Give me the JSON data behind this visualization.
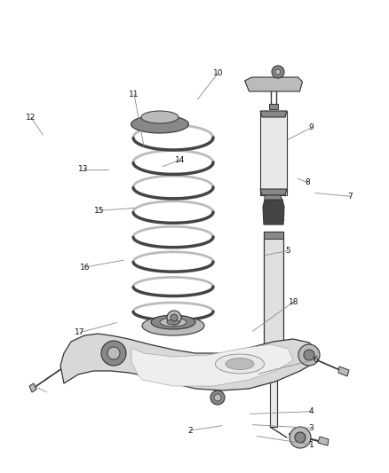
{
  "background_color": "#ffffff",
  "line_color": "#333333",
  "dark_color": "#444444",
  "mid_color": "#888888",
  "light_color": "#bbbbbb",
  "lighter_color": "#dddddd",
  "label_font_size": 6.5,
  "leader_color": "#888888",
  "leaders": [
    [
      1,
      0.8,
      0.94,
      0.66,
      0.922
    ],
    [
      2,
      0.49,
      0.91,
      0.57,
      0.9
    ],
    [
      3,
      0.8,
      0.905,
      0.65,
      0.898
    ],
    [
      4,
      0.8,
      0.87,
      0.643,
      0.875
    ],
    [
      5,
      0.74,
      0.53,
      0.68,
      0.54
    ],
    [
      6,
      0.81,
      0.76,
      0.665,
      0.79
    ],
    [
      7,
      0.9,
      0.415,
      0.81,
      0.408
    ],
    [
      8,
      0.79,
      0.385,
      0.765,
      0.378
    ],
    [
      9,
      0.8,
      0.27,
      0.74,
      0.295
    ],
    [
      10,
      0.56,
      0.155,
      0.508,
      0.21
    ],
    [
      11,
      0.345,
      0.2,
      0.37,
      0.31
    ],
    [
      12,
      0.08,
      0.248,
      0.11,
      0.285
    ],
    [
      13,
      0.215,
      0.358,
      0.278,
      0.358
    ],
    [
      14,
      0.463,
      0.338,
      0.418,
      0.352
    ],
    [
      15,
      0.255,
      0.445,
      0.345,
      0.44
    ],
    [
      16,
      0.218,
      0.565,
      0.318,
      0.55
    ],
    [
      17,
      0.205,
      0.703,
      0.3,
      0.682
    ],
    [
      18,
      0.755,
      0.638,
      0.65,
      0.7
    ]
  ]
}
